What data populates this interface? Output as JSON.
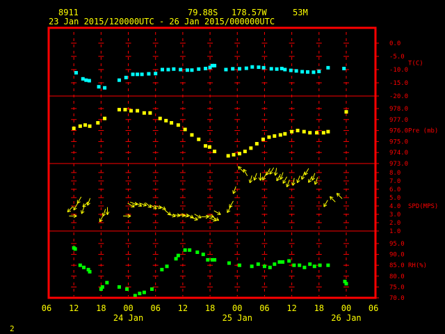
{
  "header": {
    "station_id": "8911",
    "lat": "79.88S",
    "lon": "178.57W",
    "elev": "53M",
    "time_range": "23 Jan 2015/120000UTC - 26 Jan 2015/000000UTC"
  },
  "page_number": "2",
  "colors": {
    "frame": "#ff0000",
    "grid": "#ff0000",
    "text": "#ffff00",
    "temp": "#00ffff",
    "pressure": "#ffff00",
    "wind": "#ffff00",
    "rh": "#00ff00"
  },
  "chart_data": {
    "type": "scatter",
    "x_unit": "hours from 23 Jan 2015 06 UTC",
    "xlim": [
      0,
      72
    ],
    "x_tick_labels": [
      "06",
      "12",
      "18",
      "00",
      "06",
      "12",
      "18",
      "00",
      "06",
      "12",
      "18",
      "00",
      "06"
    ],
    "date_labels": [
      {
        "text": "24 Jan",
        "hour": 18
      },
      {
        "text": "25 Jan",
        "hour": 42
      },
      {
        "text": "26 Jan",
        "hour": 66
      }
    ],
    "panels": [
      {
        "key": "temp",
        "label": "T(C)",
        "ylim": [
          -20,
          0
        ],
        "ticks": [
          "0.0",
          "-5.0",
          "-10.0",
          "-15.0",
          "-20.0"
        ],
        "tick_values": [
          0,
          -5,
          -10,
          -15,
          -20
        ],
        "label_value": -7.5,
        "points": [
          [
            6.5,
            -11.2
          ],
          [
            8,
            -13.5
          ],
          [
            8.7,
            -14
          ],
          [
            9.4,
            -14.2
          ],
          [
            11.5,
            -16.5
          ],
          [
            12.8,
            -16.9
          ],
          [
            16,
            -14
          ],
          [
            17.5,
            -13
          ],
          [
            19,
            -11.8
          ],
          [
            20,
            -11.8
          ],
          [
            21,
            -11.8
          ],
          [
            22.5,
            -11.6
          ],
          [
            24,
            -11.5
          ],
          [
            25.5,
            -10
          ],
          [
            26.8,
            -10
          ],
          [
            28,
            -9.8
          ],
          [
            29.5,
            -10
          ],
          [
            31,
            -10.2
          ],
          [
            32,
            -10.2
          ],
          [
            33.5,
            -9.8
          ],
          [
            35,
            -9.6
          ],
          [
            36,
            -9.2
          ],
          [
            36.5,
            -8.5
          ],
          [
            37,
            -8.5
          ],
          [
            39.5,
            -10
          ],
          [
            41,
            -9.7
          ],
          [
            42.5,
            -9.7
          ],
          [
            44,
            -9.5
          ],
          [
            45.3,
            -9
          ],
          [
            46.7,
            -9.1
          ],
          [
            47.8,
            -9.3
          ],
          [
            49.5,
            -9.7
          ],
          [
            50.7,
            -9.8
          ],
          [
            51.8,
            -9.6
          ],
          [
            52.5,
            -10
          ],
          [
            53.8,
            -10.3
          ],
          [
            55,
            -10.5
          ],
          [
            56.3,
            -10.8
          ],
          [
            57.5,
            -10.9
          ],
          [
            58.8,
            -11
          ],
          [
            60,
            -10.7
          ],
          [
            62,
            -9.3
          ],
          [
            65.5,
            -9.6
          ]
        ]
      },
      {
        "key": "pressure",
        "label": "Pre (mb)",
        "ylim": [
          973,
          978
        ],
        "ticks": [
          "978.0",
          "977.0",
          "976.0",
          "975.0",
          "974.0",
          "973.0"
        ],
        "tick_values": [
          978,
          977,
          976,
          975,
          974,
          973
        ],
        "label_value": 976,
        "points": [
          [
            6,
            976.2
          ],
          [
            7.4,
            976.4
          ],
          [
            8.5,
            976.5
          ],
          [
            9.5,
            976.4
          ],
          [
            11.3,
            976.7
          ],
          [
            12.8,
            977.1
          ],
          [
            16,
            977.9
          ],
          [
            17.3,
            977.9
          ],
          [
            18.6,
            977.8
          ],
          [
            20,
            977.8
          ],
          [
            21.5,
            977.6
          ],
          [
            22.8,
            977.6
          ],
          [
            25,
            977.1
          ],
          [
            26.3,
            976.9
          ],
          [
            27.5,
            976.7
          ],
          [
            29,
            976.5
          ],
          [
            30.5,
            976.1
          ],
          [
            32,
            975.6
          ],
          [
            33.5,
            975.2
          ],
          [
            35,
            974.6
          ],
          [
            35.9,
            974.5
          ],
          [
            37,
            974.1
          ],
          [
            40,
            973.7
          ],
          [
            41.2,
            973.8
          ],
          [
            42.5,
            973.9
          ],
          [
            43.7,
            974.1
          ],
          [
            45,
            974.4
          ],
          [
            46.3,
            974.8
          ],
          [
            47.7,
            975.2
          ],
          [
            49,
            975.4
          ],
          [
            50.2,
            975.5
          ],
          [
            51.5,
            975.6
          ],
          [
            52.5,
            975.7
          ],
          [
            54,
            975.9
          ],
          [
            55.3,
            976
          ],
          [
            56.7,
            975.9
          ],
          [
            58,
            975.8
          ],
          [
            59.5,
            975.8
          ],
          [
            61,
            975.8
          ],
          [
            62,
            975.9
          ],
          [
            66,
            977.7
          ]
        ]
      },
      {
        "key": "wind",
        "label": "SPD(MPS)",
        "ylim": [
          1,
          8
        ],
        "ticks": [
          "8.0",
          "7.0",
          "6.0",
          "5.0",
          "4.0",
          "3.0",
          "2.0",
          "1.0"
        ],
        "tick_values": [
          8,
          7,
          6,
          5,
          4,
          3,
          2,
          1
        ],
        "label_value": 4,
        "arrows": [
          [
            5.2,
            3.6,
            225
          ],
          [
            5.8,
            2.8,
            90
          ],
          [
            6.4,
            3.9,
            210
          ],
          [
            7.2,
            4.7,
            210
          ],
          [
            8,
            3.5,
            200
          ],
          [
            8.6,
            4.2,
            230
          ],
          [
            9.3,
            4.5,
            200
          ],
          [
            12.1,
            2.5,
            210
          ],
          [
            12.7,
            3.2,
            200
          ],
          [
            13.4,
            3.4,
            180
          ],
          [
            17.7,
            2.8,
            90
          ],
          [
            18.6,
            4.1,
            120
          ],
          [
            19.2,
            4.3,
            110
          ],
          [
            20.2,
            4.2,
            120
          ],
          [
            21.2,
            4.2,
            110
          ],
          [
            22.4,
            4.1,
            130
          ],
          [
            23.5,
            3.9,
            120
          ],
          [
            24.5,
            3.9,
            110
          ],
          [
            25.5,
            3.8,
            120
          ],
          [
            26.7,
            3.2,
            130
          ],
          [
            27.6,
            2.9,
            110
          ],
          [
            28.6,
            2.9,
            100
          ],
          [
            29.7,
            2.9,
            100
          ],
          [
            30.5,
            2.9,
            110
          ],
          [
            31.6,
            2.8,
            120
          ],
          [
            32.5,
            2.5,
            110
          ],
          [
            33.3,
            2.8,
            120
          ],
          [
            34.9,
            2.7,
            90
          ],
          [
            36,
            2.8,
            100
          ],
          [
            36.6,
            2.4,
            110
          ],
          [
            37.2,
            2.5,
            120
          ],
          [
            37.6,
            3.2,
            120
          ],
          [
            40.2,
            3.6,
            210
          ],
          [
            40.7,
            4.2,
            210
          ],
          [
            41.4,
            5.9,
            200
          ],
          [
            42.8,
            8.4,
            315
          ],
          [
            43.8,
            8,
            330
          ],
          [
            45,
            7.2,
            195
          ],
          [
            46,
            7.5,
            200
          ],
          [
            47.1,
            7.5,
            180
          ],
          [
            48,
            7.5,
            210
          ],
          [
            48.8,
            8.1,
            210
          ],
          [
            49.6,
            8.2,
            210
          ],
          [
            50.5,
            8.1,
            190
          ],
          [
            51.1,
            7.4,
            210
          ],
          [
            51.8,
            7.6,
            200
          ],
          [
            52.5,
            7.1,
            210
          ],
          [
            53.2,
            6.7,
            200
          ],
          [
            54.4,
            6.9,
            190
          ],
          [
            55.5,
            7.2,
            200
          ],
          [
            56.5,
            7.6,
            200
          ],
          [
            57.3,
            8.1,
            210
          ],
          [
            58.1,
            7.2,
            210
          ],
          [
            58.8,
            7.5,
            200
          ],
          [
            59.4,
            7,
            200
          ],
          [
            61.5,
            4.3,
            210
          ],
          [
            63,
            4.8,
            315
          ],
          [
            64.5,
            5.2,
            315
          ]
        ]
      },
      {
        "key": "rh",
        "label": "RH(%)",
        "ylim": [
          70,
          95
        ],
        "ticks": [
          "95.0",
          "90.0",
          "85.0",
          "80.0",
          "75.0",
          "70.0"
        ],
        "tick_values": [
          95,
          90,
          85,
          80,
          75,
          70
        ],
        "label_value": 85,
        "points": [
          [
            6,
            93
          ],
          [
            6.3,
            92.5
          ],
          [
            7.4,
            85
          ],
          [
            8.2,
            84
          ],
          [
            9.2,
            83
          ],
          [
            9.5,
            82
          ],
          [
            12,
            74
          ],
          [
            12.3,
            75
          ],
          [
            13.3,
            77
          ],
          [
            16,
            75
          ],
          [
            17.7,
            74
          ],
          [
            19.5,
            71
          ],
          [
            20.5,
            72
          ],
          [
            21.5,
            72.5
          ],
          [
            23.2,
            74
          ],
          [
            25.4,
            83
          ],
          [
            26.5,
            84.5
          ],
          [
            28.5,
            88
          ],
          [
            29,
            89.5
          ],
          [
            30.5,
            92
          ],
          [
            31.5,
            92
          ],
          [
            33.2,
            91
          ],
          [
            34.5,
            90
          ],
          [
            35.5,
            87.5
          ],
          [
            36.5,
            87.5
          ],
          [
            37,
            87.5
          ],
          [
            40.2,
            86
          ],
          [
            42.5,
            85
          ],
          [
            45.2,
            84.5
          ],
          [
            46.6,
            85.5
          ],
          [
            48,
            84.5
          ],
          [
            49.2,
            84
          ],
          [
            50.2,
            85.5
          ],
          [
            51.3,
            86.5
          ],
          [
            52,
            86.5
          ],
          [
            53.4,
            87
          ],
          [
            54.5,
            85
          ],
          [
            55.7,
            85
          ],
          [
            56.8,
            84
          ],
          [
            58,
            85.5
          ],
          [
            59,
            84.5
          ],
          [
            60.2,
            85
          ],
          [
            62,
            85
          ],
          [
            65.7,
            77.5
          ],
          [
            66,
            76.5
          ]
        ]
      }
    ]
  }
}
